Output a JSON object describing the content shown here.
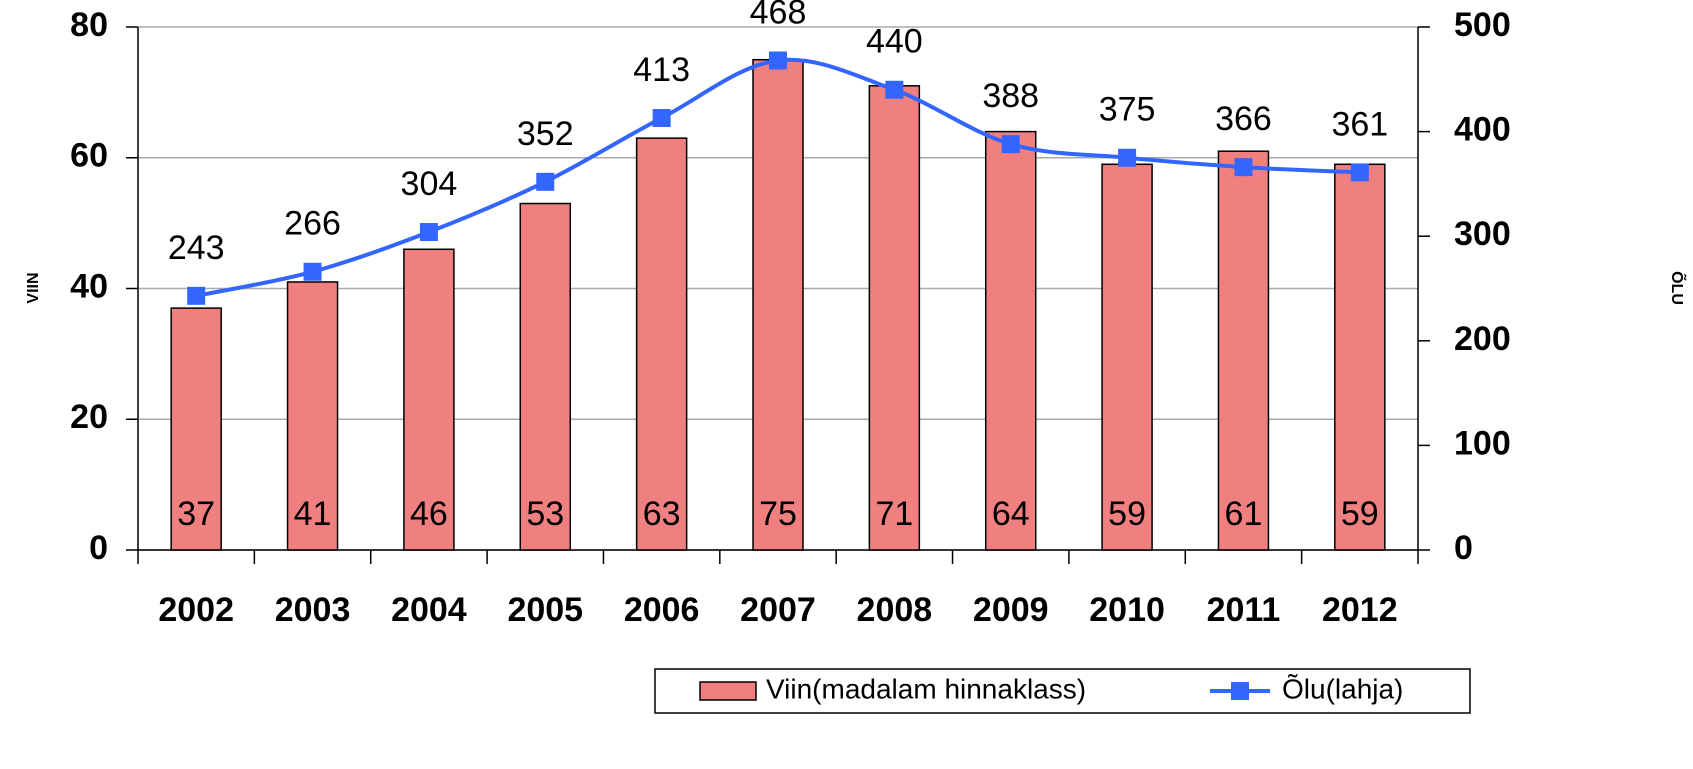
{
  "chart_data": {
    "type": "bar+line",
    "categories": [
      "2002",
      "2003",
      "2004",
      "2005",
      "2006",
      "2007",
      "2008",
      "2009",
      "2010",
      "2011",
      "2012"
    ],
    "series": [
      {
        "name": "Viin(madalam hinnaklass)",
        "color": "#f08080",
        "type": "bar",
        "values": [
          37,
          41,
          46,
          53,
          63,
          75,
          71,
          64,
          59,
          61,
          59
        ]
      },
      {
        "name": "Õlu(lahja)",
        "color": "#3366ff",
        "type": "line",
        "axis": "y2",
        "values": [
          243,
          266,
          304,
          352,
          413,
          468,
          440,
          388,
          375,
          366,
          361
        ]
      }
    ],
    "ylabel": "VIIN",
    "y2label": "ÕLU",
    "ylim": [
      0,
      80
    ],
    "yticks": [
      0,
      20,
      40,
      60,
      80
    ],
    "y2lim": [
      0,
      500
    ],
    "y2ticks": [
      0,
      100,
      200,
      300,
      400,
      500
    ],
    "grid": true,
    "legend": "bottom"
  }
}
